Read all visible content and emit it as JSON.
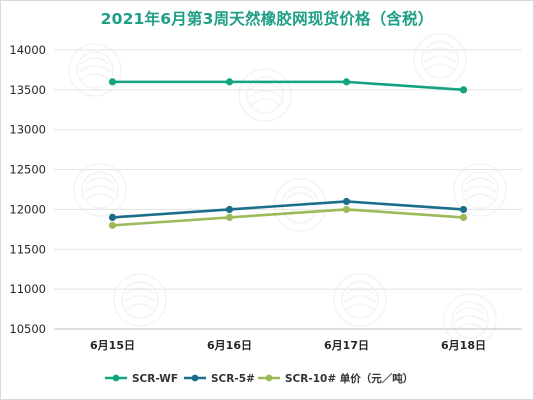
{
  "chart_data": {
    "type": "line",
    "title": "2021年6月第3周天然橡胶网现货价格（含税）",
    "categories": [
      "6月15日",
      "6月16日",
      "6月17日",
      "6月18日"
    ],
    "series": [
      {
        "name": "SCR-WF",
        "values": [
          13600,
          13600,
          13600,
          13500
        ],
        "color": "#13a383"
      },
      {
        "name": "SCR-5#",
        "values": [
          11900,
          12000,
          12100,
          12000
        ],
        "color": "#1a6e8a"
      },
      {
        "name": "SCR-10# 单价（元／吨）",
        "values": [
          11800,
          11900,
          12000,
          11900
        ],
        "color": "#9bbb59"
      }
    ],
    "ylim": [
      10500,
      14000
    ],
    "yticks": [
      10500,
      11000,
      11500,
      12000,
      12500,
      13000,
      13500,
      14000
    ],
    "grid": true,
    "legend_position": "bottom"
  }
}
